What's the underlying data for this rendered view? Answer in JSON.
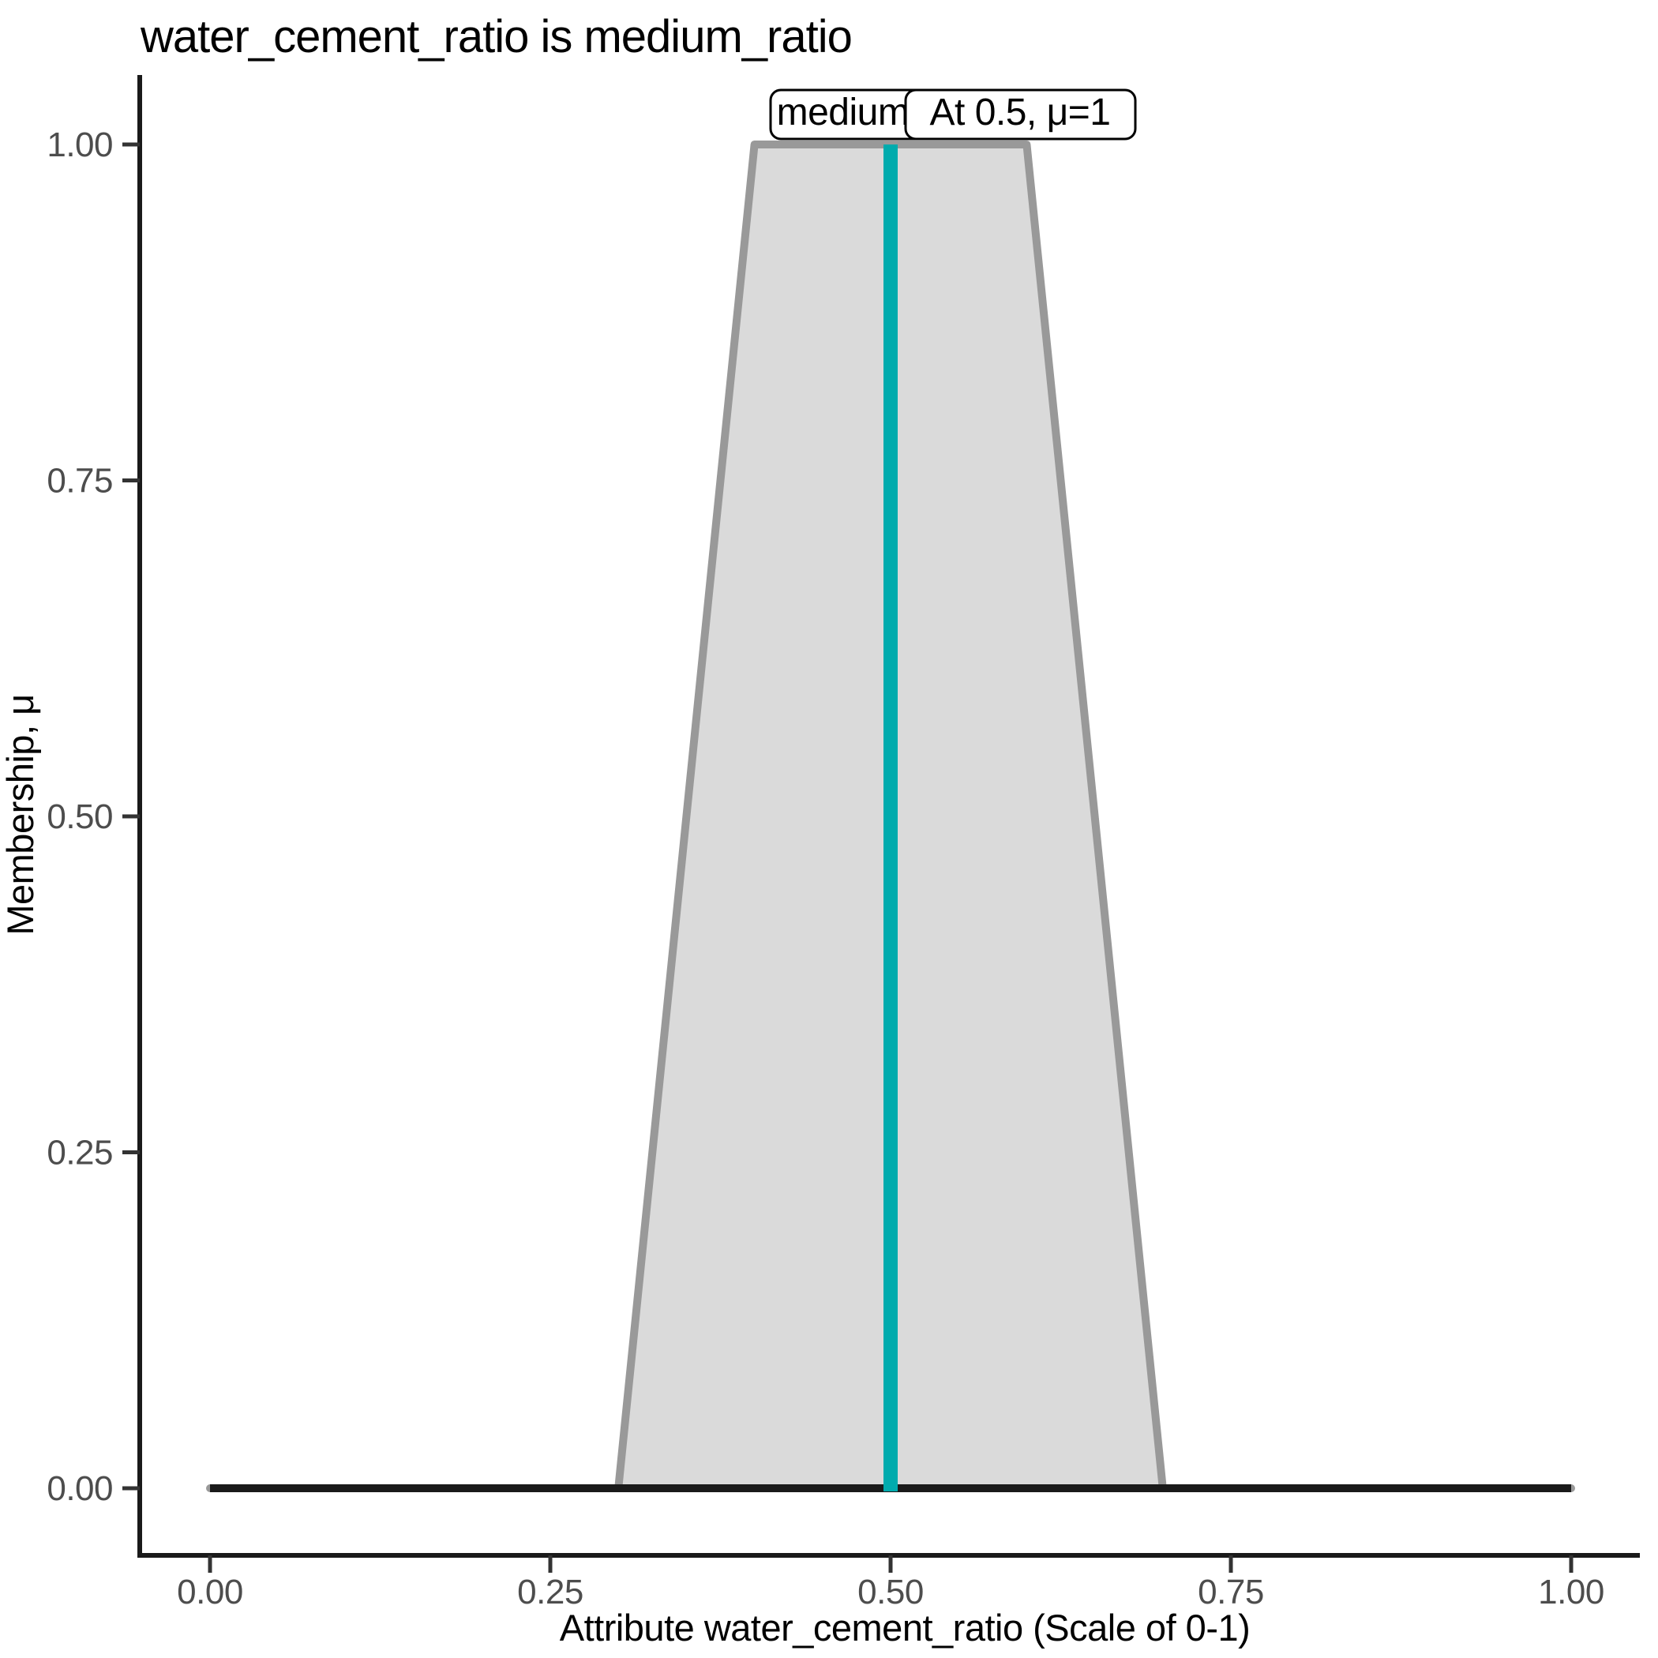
{
  "chart_data": {
    "type": "area",
    "title": "water_cement_ratio is medium_ratio",
    "xlabel": "Attribute water_cement_ratio (Scale of 0-1)",
    "ylabel": "Membership, μ",
    "xlim": [
      0,
      1
    ],
    "ylim": [
      0,
      1
    ],
    "grid": "off",
    "x_ticks": [
      {
        "value": 0.0,
        "label": "0.00"
      },
      {
        "value": 0.25,
        "label": "0.25"
      },
      {
        "value": 0.5,
        "label": "0.50"
      },
      {
        "value": 0.75,
        "label": "0.75"
      },
      {
        "value": 1.0,
        "label": "1.00"
      }
    ],
    "y_ticks": [
      {
        "value": 0.0,
        "label": "0.00"
      },
      {
        "value": 0.25,
        "label": "0.25"
      },
      {
        "value": 0.5,
        "label": "0.50"
      },
      {
        "value": 0.75,
        "label": "0.75"
      },
      {
        "value": 1.0,
        "label": "1.00"
      }
    ],
    "series": [
      {
        "name": "medium_ratio",
        "shape": "trapezoid",
        "points": [
          [
            0,
            0
          ],
          [
            0.3,
            0
          ],
          [
            0.4,
            1
          ],
          [
            0.6,
            1
          ],
          [
            0.7,
            0
          ],
          [
            1,
            0
          ]
        ]
      }
    ],
    "baseline": {
      "y": 0,
      "x_start": 0,
      "x_end": 1
    },
    "vline": {
      "x": 0.5,
      "mu_top": 1,
      "mu_bottom": 0
    },
    "annotations": [
      {
        "id": "set-label",
        "text": "medium_ratio"
      },
      {
        "id": "query-label",
        "text": "At 0.5, μ=1"
      }
    ]
  },
  "colors": {
    "teal": "#00ABAD",
    "fill": "#DADADA",
    "border": "#999999",
    "axis": "#1A1A1A",
    "tick": "#333333",
    "ticklabel": "#4D4D4D",
    "text": "#000000",
    "boxbg": "#FFFFFF"
  }
}
